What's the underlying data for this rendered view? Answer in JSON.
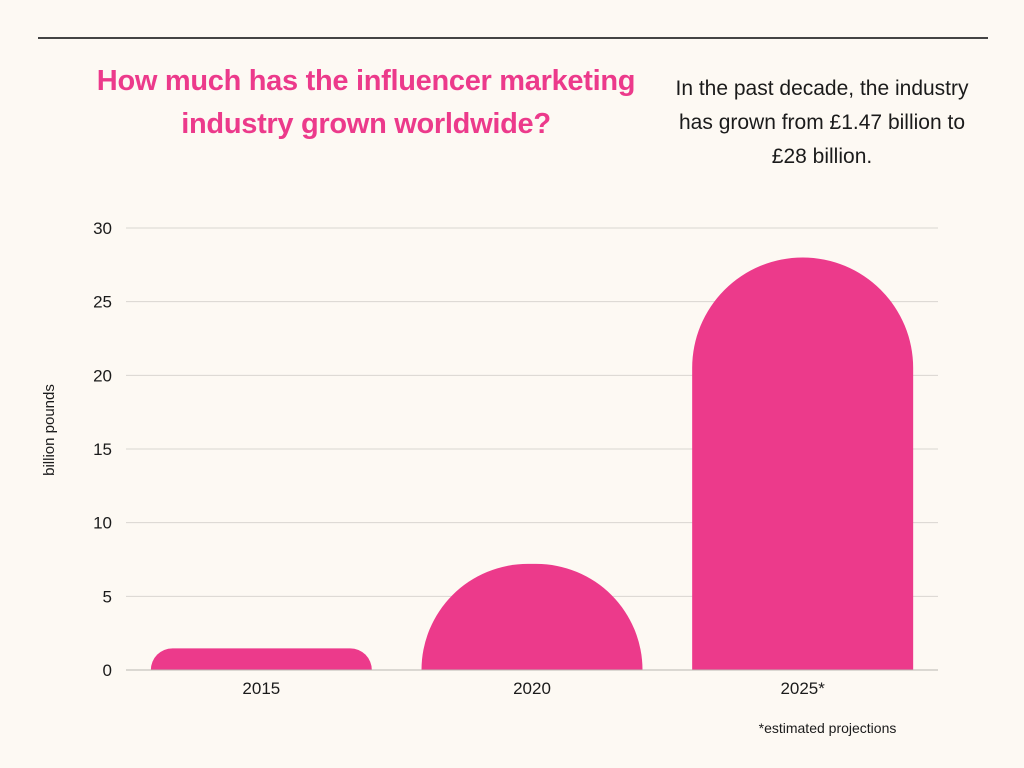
{
  "header": {
    "headline": "How much has the influencer marketing industry grown worldwide?",
    "summary": "In the past decade, the industry has grown from £1.47 billion to £28 billion."
  },
  "footnote": "*estimated projections",
  "colors": {
    "bar": "#ec3a8b",
    "headline": "#ec3a8b",
    "gridline": "#d9d6d1",
    "axis": "#b9b6b1",
    "background": "#fdf9f3"
  },
  "chart_data": {
    "type": "bar",
    "categories": [
      "2015",
      "2020",
      "2025*"
    ],
    "values": [
      1.47,
      7.2,
      28
    ],
    "title": "How much has the influencer marketing industry grown worldwide?",
    "xlabel": "",
    "ylabel": "billion pounds",
    "ylim": [
      0,
      30
    ],
    "yticks": [
      "0",
      "5",
      "10",
      "15",
      "20",
      "25",
      "30"
    ],
    "grid": true,
    "legend": "none"
  }
}
